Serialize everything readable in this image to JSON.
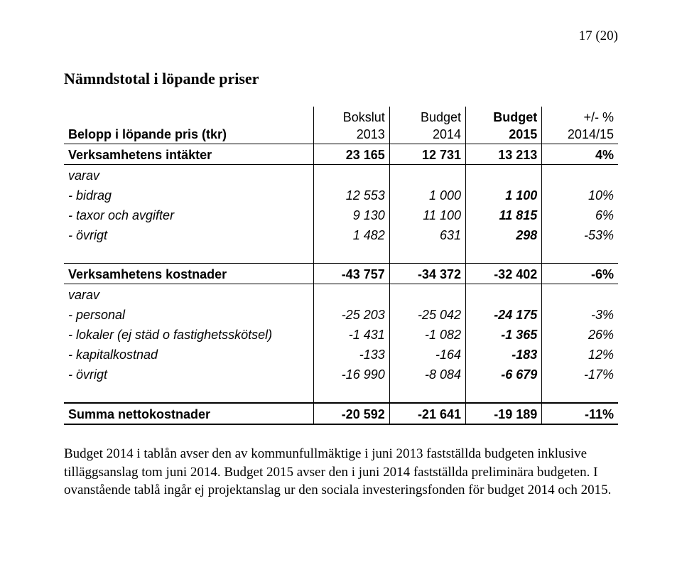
{
  "pageNumber": "17 (20)",
  "title": "Nämndstotal i löpande priser",
  "columns": {
    "label_top": "",
    "label_bot": "Belopp i löpande pris (tkr)",
    "c1_top": "Bokslut",
    "c1_bot": "2013",
    "c2_top": "Budget",
    "c2_bot": "2014",
    "c3_top": "Budget",
    "c3_bot": "2015",
    "c4_top": "+/- %",
    "c4_bot": "2014/15"
  },
  "rows": {
    "r1": {
      "label": "Verksamhetens intäkter",
      "c1": "23 165",
      "c2": "12 731",
      "c3": "13 213",
      "c4": "4%"
    },
    "r2": {
      "label": "varav"
    },
    "r3": {
      "label": " - bidrag",
      "c1": "12 553",
      "c2": "1 000",
      "c3": "1 100",
      "c4": "10%"
    },
    "r4": {
      "label": " - taxor och avgifter",
      "c1": "9 130",
      "c2": "11 100",
      "c3": "11 815",
      "c4": "6%"
    },
    "r5": {
      "label": " - övrigt",
      "c1": "1 482",
      "c2": "631",
      "c3": "298",
      "c4": "-53%"
    },
    "r6": {
      "label": "Verksamhetens kostnader",
      "c1": "-43 757",
      "c2": "-34 372",
      "c3": "-32 402",
      "c4": "-6%"
    },
    "r7": {
      "label": "varav"
    },
    "r8": {
      "label": " - personal",
      "c1": "-25 203",
      "c2": "-25 042",
      "c3": "-24 175",
      "c4": "-3%"
    },
    "r9": {
      "label": " - lokaler (ej städ o fastighetsskötsel)",
      "c1": "-1 431",
      "c2": "-1 082",
      "c3": "-1 365",
      "c4": "26%"
    },
    "r10": {
      "label": " - kapitalkostnad",
      "c1": "-133",
      "c2": "-164",
      "c3": "-183",
      "c4": "12%"
    },
    "r11": {
      "label": " - övrigt",
      "c1": "-16 990",
      "c2": "-8 084",
      "c3": "-6 679",
      "c4": "-17%"
    },
    "sum": {
      "label": "Summa nettokostnader",
      "c1": "-20 592",
      "c2": "-21 641",
      "c3": "-19 189",
      "c4": "-11%"
    }
  },
  "footnote": "Budget 2014 i tablån avser den av kommunfullmäktige i juni 2013 fastställda budgeten inklusive tilläggsanslag tom juni 2014.  Budget 2015 avser den i juni 2014 fastställda preliminära budgeten. I ovanstående tablå ingår ej projektanslag ur den sociala investeringsfonden för budget 2014 och 2015."
}
